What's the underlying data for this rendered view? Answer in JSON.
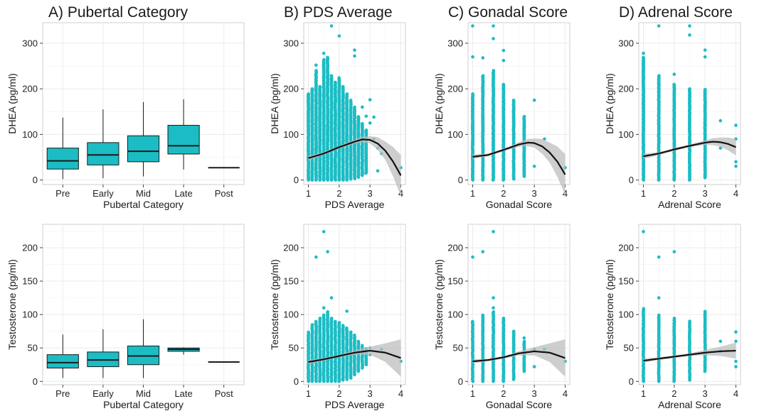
{
  "colors": {
    "point": "#1cbcc4",
    "box_fill": "#1cbcc4",
    "box_stroke": "#1a1a1a",
    "fit_line": "#111111",
    "ci_band": "#bdbdbd"
  },
  "chart_data": [
    {
      "id": "A1",
      "type": "box",
      "title": "A) Pubertal Category",
      "xlabel": "Pubertal Category",
      "ylabel": "DHEA (pg/ml)",
      "categories": [
        "Pre",
        "Early",
        "Mid",
        "Late",
        "Post"
      ],
      "ylim": [
        -10,
        345
      ],
      "yticks": [
        0,
        100,
        200,
        300
      ],
      "boxes": [
        {
          "min": 2,
          "q1": 24,
          "median": 42,
          "q3": 70,
          "max": 137
        },
        {
          "min": 4,
          "q1": 33,
          "median": 55,
          "q3": 82,
          "max": 155
        },
        {
          "min": 8,
          "q1": 40,
          "median": 63,
          "q3": 97,
          "max": 171
        },
        {
          "min": 23,
          "q1": 57,
          "median": 75,
          "q3": 120,
          "max": 177
        },
        {
          "min": 27,
          "q1": 27,
          "median": 27,
          "q3": 27,
          "max": 27
        }
      ]
    },
    {
      "id": "B1",
      "type": "scatter",
      "title": "B) PDS Average",
      "xlabel": "PDS Average",
      "ylabel": "DHEA (pg/ml)",
      "xlim": [
        0.85,
        4.15
      ],
      "xticks": [
        1,
        2,
        3,
        4
      ],
      "ylim": [
        -10,
        345
      ],
      "yticks": [
        0,
        100,
        200,
        300
      ],
      "columns": [
        {
          "x": 1.0,
          "lo": 0,
          "hi": 190
        },
        {
          "x": 1.125,
          "lo": 0,
          "hi": 200
        },
        {
          "x": 1.25,
          "lo": 0,
          "hi": 240
        },
        {
          "x": 1.375,
          "lo": 0,
          "hi": 205
        },
        {
          "x": 1.5,
          "lo": 0,
          "hi": 265
        },
        {
          "x": 1.625,
          "lo": 0,
          "hi": 270
        },
        {
          "x": 1.75,
          "lo": 0,
          "hi": 230
        },
        {
          "x": 1.875,
          "lo": 0,
          "hi": 215
        },
        {
          "x": 2.0,
          "lo": 0,
          "hi": 225
        },
        {
          "x": 2.125,
          "lo": 0,
          "hi": 205
        },
        {
          "x": 2.25,
          "lo": 0,
          "hi": 190
        },
        {
          "x": 2.375,
          "lo": 2,
          "hi": 175
        },
        {
          "x": 2.5,
          "lo": 3,
          "hi": 160
        },
        {
          "x": 2.625,
          "lo": 6,
          "hi": 140
        },
        {
          "x": 2.75,
          "lo": 10,
          "hi": 125
        },
        {
          "x": 2.875,
          "lo": 15,
          "hi": 110
        }
      ],
      "points": [
        [
          1.75,
          338
        ],
        [
          2.0,
          316
        ],
        [
          2.5,
          285
        ],
        [
          2.5,
          272
        ],
        [
          1.5,
          278
        ],
        [
          1.625,
          268
        ],
        [
          1.25,
          252
        ],
        [
          3.0,
          176
        ],
        [
          3.0,
          125
        ],
        [
          3.125,
          138
        ],
        [
          3.125,
          90
        ],
        [
          3.25,
          70
        ],
        [
          3.25,
          20
        ],
        [
          3.375,
          58
        ],
        [
          4.0,
          27
        ],
        [
          2.875,
          140
        ],
        [
          2.75,
          160
        ]
      ],
      "fit": [
        [
          1.0,
          48
        ],
        [
          1.5,
          58
        ],
        [
          2.0,
          72
        ],
        [
          2.5,
          84
        ],
        [
          2.75,
          89
        ],
        [
          3.0,
          88
        ],
        [
          3.25,
          80
        ],
        [
          3.5,
          64
        ],
        [
          3.75,
          40
        ],
        [
          4.0,
          10
        ]
      ],
      "ci_width": [
        [
          1.0,
          5
        ],
        [
          1.5,
          3
        ],
        [
          2.0,
          3
        ],
        [
          2.5,
          4
        ],
        [
          3.0,
          8
        ],
        [
          3.5,
          20
        ],
        [
          4.0,
          45
        ]
      ]
    },
    {
      "id": "C1",
      "type": "scatter",
      "title": "C) Gonadal Score",
      "xlabel": "Gonadal Score",
      "ylabel": "DHEA (pg/ml)",
      "xlim": [
        0.85,
        4.15
      ],
      "xticks": [
        1,
        2,
        3,
        4
      ],
      "ylim": [
        -10,
        345
      ],
      "yticks": [
        0,
        100,
        200,
        300
      ],
      "columns": [
        {
          "x": 1.0,
          "lo": 0,
          "hi": 190
        },
        {
          "x": 1.33,
          "lo": 0,
          "hi": 230
        },
        {
          "x": 1.67,
          "lo": 0,
          "hi": 240
        },
        {
          "x": 2.0,
          "lo": 0,
          "hi": 210
        },
        {
          "x": 2.33,
          "lo": 2,
          "hi": 175
        },
        {
          "x": 2.67,
          "lo": 8,
          "hi": 140
        }
      ],
      "points": [
        [
          1.0,
          338
        ],
        [
          1.0,
          270
        ],
        [
          1.67,
          338
        ],
        [
          1.67,
          310
        ],
        [
          1.33,
          268
        ],
        [
          2.0,
          284
        ],
        [
          2.0,
          262
        ],
        [
          3.0,
          175
        ],
        [
          2.67,
          100
        ],
        [
          3.0,
          30
        ],
        [
          4.0,
          27
        ],
        [
          3.33,
          90
        ]
      ],
      "fit": [
        [
          1.0,
          51
        ],
        [
          1.5,
          55
        ],
        [
          2.0,
          66
        ],
        [
          2.5,
          78
        ],
        [
          2.8,
          82
        ],
        [
          3.0,
          81
        ],
        [
          3.25,
          74
        ],
        [
          3.5,
          60
        ],
        [
          3.75,
          40
        ],
        [
          4.0,
          12
        ]
      ],
      "ci_width": [
        [
          1.0,
          5
        ],
        [
          1.5,
          3
        ],
        [
          2.0,
          3
        ],
        [
          2.5,
          5
        ],
        [
          3.0,
          10
        ],
        [
          3.5,
          22
        ],
        [
          4.0,
          45
        ]
      ]
    },
    {
      "id": "D1",
      "type": "scatter",
      "title": "D) Adrenal Score",
      "xlabel": "Adrenal Score",
      "ylabel": "DHEA (pg/ml)",
      "xlim": [
        0.85,
        4.15
      ],
      "xticks": [
        1,
        2,
        3,
        4
      ],
      "ylim": [
        -10,
        345
      ],
      "yticks": [
        0,
        100,
        200,
        300
      ],
      "columns": [
        {
          "x": 1.0,
          "lo": 0,
          "hi": 270
        },
        {
          "x": 1.5,
          "lo": 0,
          "hi": 230
        },
        {
          "x": 2.0,
          "lo": 0,
          "hi": 210
        },
        {
          "x": 2.5,
          "lo": 0,
          "hi": 200
        },
        {
          "x": 3.0,
          "lo": 5,
          "hi": 200
        }
      ],
      "points": [
        [
          1.5,
          338
        ],
        [
          2.5,
          338
        ],
        [
          2.5,
          318
        ],
        [
          1.0,
          278
        ],
        [
          2.0,
          232
        ],
        [
          3.0,
          285
        ],
        [
          3.0,
          270
        ],
        [
          3.5,
          130
        ],
        [
          3.5,
          70
        ],
        [
          4.0,
          120
        ],
        [
          4.0,
          90
        ],
        [
          4.0,
          40
        ],
        [
          4.0,
          30
        ]
      ],
      "fit": [
        [
          1.0,
          52
        ],
        [
          1.5,
          58
        ],
        [
          2.0,
          67
        ],
        [
          2.5,
          75
        ],
        [
          3.0,
          82
        ],
        [
          3.25,
          84
        ],
        [
          3.5,
          83
        ],
        [
          3.75,
          79
        ],
        [
          4.0,
          72
        ]
      ],
      "ci_width": [
        [
          1.0,
          6
        ],
        [
          1.5,
          3
        ],
        [
          2.0,
          3
        ],
        [
          2.5,
          3
        ],
        [
          3.0,
          5
        ],
        [
          3.5,
          10
        ],
        [
          4.0,
          18
        ]
      ]
    },
    {
      "id": "A2",
      "type": "box",
      "title": "",
      "xlabel": "Pubertal Category",
      "ylabel": "Testosterone (pg/ml)",
      "categories": [
        "Pre",
        "Early",
        "Mid",
        "Late",
        "Post"
      ],
      "ylim": [
        -5,
        235
      ],
      "yticks": [
        0,
        50,
        100,
        150,
        200
      ],
      "boxes": [
        {
          "min": 5,
          "q1": 20,
          "median": 28,
          "q3": 40,
          "max": 70
        },
        {
          "min": 5,
          "q1": 22,
          "median": 32,
          "q3": 44,
          "max": 78
        },
        {
          "min": 5,
          "q1": 25,
          "median": 38,
          "q3": 53,
          "max": 93
        },
        {
          "min": 40,
          "q1": 45,
          "median": 48,
          "q3": 50,
          "max": 51
        },
        {
          "min": 29,
          "q1": 29,
          "median": 29,
          "q3": 29,
          "max": 29
        }
      ]
    },
    {
      "id": "B2",
      "type": "scatter",
      "title": "",
      "xlabel": "PDS Average",
      "ylabel": "Testosterone (pg/ml)",
      "xlim": [
        0.85,
        4.15
      ],
      "xticks": [
        1,
        2,
        3,
        4
      ],
      "ylim": [
        -5,
        235
      ],
      "yticks": [
        0,
        50,
        100,
        150,
        200
      ],
      "columns": [
        {
          "x": 1.0,
          "lo": 0,
          "hi": 75
        },
        {
          "x": 1.125,
          "lo": 0,
          "hi": 85
        },
        {
          "x": 1.25,
          "lo": 0,
          "hi": 90
        },
        {
          "x": 1.375,
          "lo": 0,
          "hi": 95
        },
        {
          "x": 1.5,
          "lo": 0,
          "hi": 100
        },
        {
          "x": 1.625,
          "lo": 0,
          "hi": 105
        },
        {
          "x": 1.75,
          "lo": 0,
          "hi": 95
        },
        {
          "x": 1.875,
          "lo": 0,
          "hi": 90
        },
        {
          "x": 2.0,
          "lo": 0,
          "hi": 88
        },
        {
          "x": 2.125,
          "lo": 2,
          "hi": 85
        },
        {
          "x": 2.25,
          "lo": 3,
          "hi": 80
        },
        {
          "x": 2.375,
          "lo": 5,
          "hi": 75
        },
        {
          "x": 2.5,
          "lo": 10,
          "hi": 70
        },
        {
          "x": 2.625,
          "lo": 15,
          "hi": 60
        },
        {
          "x": 2.75,
          "lo": 20,
          "hi": 55
        },
        {
          "x": 2.875,
          "lo": 25,
          "hi": 50
        }
      ],
      "points": [
        [
          1.5,
          224
        ],
        [
          1.625,
          194
        ],
        [
          1.25,
          186
        ],
        [
          1.75,
          125
        ],
        [
          1.5,
          110
        ],
        [
          2.25,
          105
        ],
        [
          3.0,
          50
        ],
        [
          3.0,
          40
        ],
        [
          4.0,
          30
        ],
        [
          3.375,
          48
        ]
      ],
      "fit": [
        [
          1.0,
          29
        ],
        [
          1.5,
          33
        ],
        [
          2.0,
          38
        ],
        [
          2.5,
          43
        ],
        [
          3.0,
          46
        ],
        [
          3.5,
          43
        ],
        [
          4.0,
          35
        ]
      ],
      "ci_width": [
        [
          1.0,
          3
        ],
        [
          1.5,
          2
        ],
        [
          2.0,
          2
        ],
        [
          2.5,
          3
        ],
        [
          3.0,
          6
        ],
        [
          3.5,
          14
        ],
        [
          4.0,
          28
        ]
      ]
    },
    {
      "id": "C2",
      "type": "scatter",
      "title": "",
      "xlabel": "Gonadal Score",
      "ylabel": "Testosterone (pg/ml)",
      "xlim": [
        0.85,
        4.15
      ],
      "xticks": [
        1,
        2,
        3,
        4
      ],
      "ylim": [
        -5,
        235
      ],
      "yticks": [
        0,
        50,
        100,
        150,
        200
      ],
      "columns": [
        {
          "x": 1.0,
          "lo": 0,
          "hi": 90
        },
        {
          "x": 1.33,
          "lo": 0,
          "hi": 100
        },
        {
          "x": 1.67,
          "lo": 0,
          "hi": 105
        },
        {
          "x": 2.0,
          "lo": 0,
          "hi": 95
        },
        {
          "x": 2.33,
          "lo": 3,
          "hi": 75
        },
        {
          "x": 2.67,
          "lo": 15,
          "hi": 60
        }
      ],
      "points": [
        [
          1.67,
          224
        ],
        [
          1.33,
          194
        ],
        [
          1.0,
          186
        ],
        [
          1.67,
          125
        ],
        [
          1.67,
          110
        ],
        [
          3.0,
          48
        ],
        [
          3.0,
          22
        ],
        [
          3.33,
          48
        ],
        [
          4.0,
          30
        ],
        [
          2.67,
          65
        ]
      ],
      "fit": [
        [
          1.0,
          30
        ],
        [
          1.5,
          32
        ],
        [
          2.0,
          36
        ],
        [
          2.5,
          42
        ],
        [
          3.0,
          45
        ],
        [
          3.5,
          43
        ],
        [
          4.0,
          35
        ]
      ],
      "ci_width": [
        [
          1.0,
          3
        ],
        [
          1.5,
          2
        ],
        [
          2.0,
          2
        ],
        [
          2.5,
          3
        ],
        [
          3.0,
          6
        ],
        [
          3.5,
          14
        ],
        [
          4.0,
          28
        ]
      ]
    },
    {
      "id": "D2",
      "type": "scatter",
      "title": "",
      "xlabel": "Adrenal Score",
      "ylabel": "Testosterone (pg/ml)",
      "xlim": [
        0.85,
        4.15
      ],
      "xticks": [
        1,
        2,
        3,
        4
      ],
      "ylim": [
        -5,
        235
      ],
      "yticks": [
        0,
        50,
        100,
        150,
        200
      ],
      "columns": [
        {
          "x": 1.0,
          "lo": 0,
          "hi": 110
        },
        {
          "x": 1.5,
          "lo": 0,
          "hi": 100
        },
        {
          "x": 2.0,
          "lo": 0,
          "hi": 95
        },
        {
          "x": 2.5,
          "lo": 2,
          "hi": 90
        },
        {
          "x": 3.0,
          "lo": 15,
          "hi": 105
        }
      ],
      "points": [
        [
          1.0,
          224
        ],
        [
          1.5,
          186
        ],
        [
          2.0,
          194
        ],
        [
          1.5,
          125
        ],
        [
          3.5,
          60
        ],
        [
          3.5,
          45
        ],
        [
          4.0,
          74
        ],
        [
          4.0,
          60
        ],
        [
          4.0,
          30
        ],
        [
          4.0,
          22
        ]
      ],
      "fit": [
        [
          1.0,
          31
        ],
        [
          1.5,
          34
        ],
        [
          2.0,
          37
        ],
        [
          2.5,
          40
        ],
        [
          3.0,
          43
        ],
        [
          3.5,
          45
        ],
        [
          4.0,
          46
        ]
      ],
      "ci_width": [
        [
          1.0,
          3
        ],
        [
          1.5,
          2
        ],
        [
          2.0,
          2
        ],
        [
          2.5,
          2
        ],
        [
          3.0,
          4
        ],
        [
          3.5,
          7
        ],
        [
          4.0,
          12
        ]
      ]
    }
  ]
}
